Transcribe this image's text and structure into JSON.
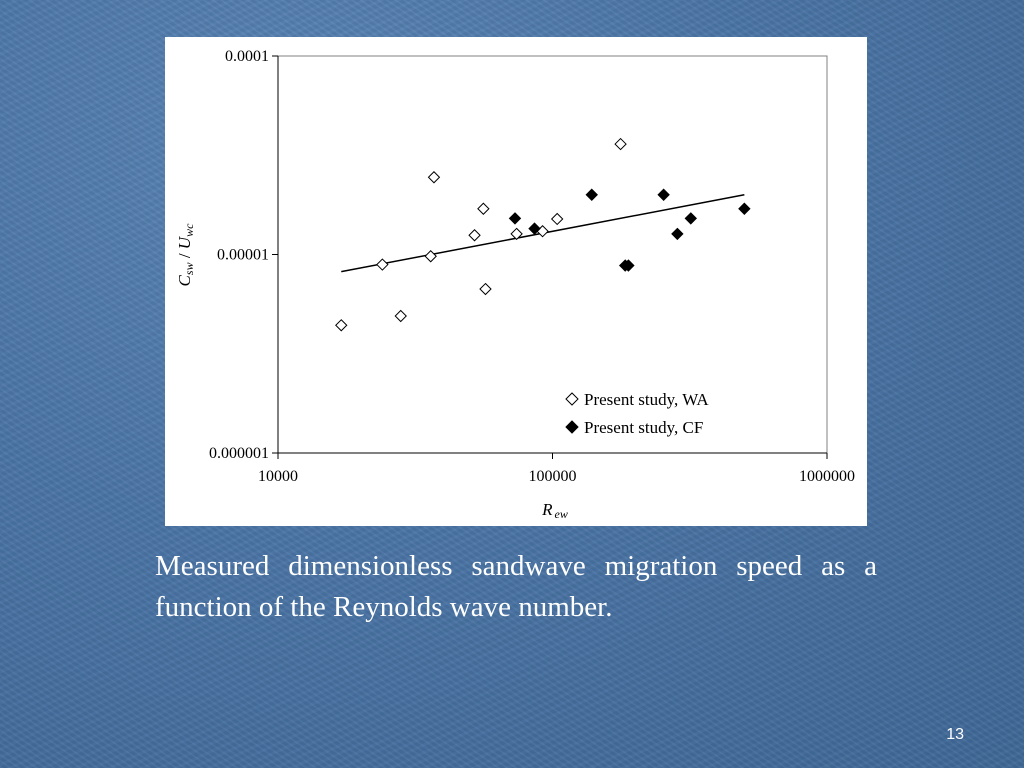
{
  "slide": {
    "caption": "Measured dimensionless sandwave migration speed as a function of the Reynolds wave number.",
    "page_number": "13"
  },
  "colors": {
    "background": "#4a74a5",
    "text": "#ffffff",
    "panel": "#ffffff",
    "markers": "#000000"
  },
  "chart_data": {
    "type": "scatter",
    "title": "",
    "xlabel": {
      "main": "R",
      "sub": "ew"
    },
    "ylabel": {
      "c": "C",
      "c_sub": "sw",
      "slash": " / ",
      "u": "U",
      "u_sub": "wc"
    },
    "x_scale": "log",
    "y_scale": "log",
    "xlim": [
      10000,
      1000000
    ],
    "ylim": [
      1e-06,
      0.0001
    ],
    "x_ticks": [
      10000,
      100000,
      1000000
    ],
    "x_tick_labels": [
      "10000",
      "100000",
      "1000000"
    ],
    "y_ticks": [
      1e-06,
      1e-05,
      0.0001
    ],
    "y_tick_labels": [
      "0.000001",
      "0.00001",
      "0.0001"
    ],
    "grid": false,
    "legend_position": "bottom-right",
    "series": [
      {
        "name": "Present study, WA",
        "marker": "open-diamond",
        "x": [
          17000,
          24000,
          28000,
          36000,
          37000,
          52000,
          56000,
          57000,
          74000,
          92000,
          104000,
          177000
        ],
        "y": [
          4.4e-06,
          8.9e-06,
          4.9e-06,
          9.8e-06,
          2.45e-05,
          1.25e-05,
          1.7e-05,
          6.7e-06,
          1.27e-05,
          1.31e-05,
          1.51e-05,
          3.6e-05
        ]
      },
      {
        "name": "Present study, CF",
        "marker": "filled-diamond",
        "x": [
          73000,
          86000,
          139000,
          184000,
          189000,
          254000,
          285000,
          319000,
          500000
        ],
        "y": [
          1.52e-05,
          1.35e-05,
          2e-05,
          8.8e-06,
          8.8e-06,
          2e-05,
          1.27e-05,
          1.52e-05,
          1.7e-05
        ]
      }
    ],
    "trendline": {
      "type": "power",
      "x": [
        17000,
        500000
      ],
      "y": [
        8.2e-06,
        2e-05
      ]
    }
  }
}
